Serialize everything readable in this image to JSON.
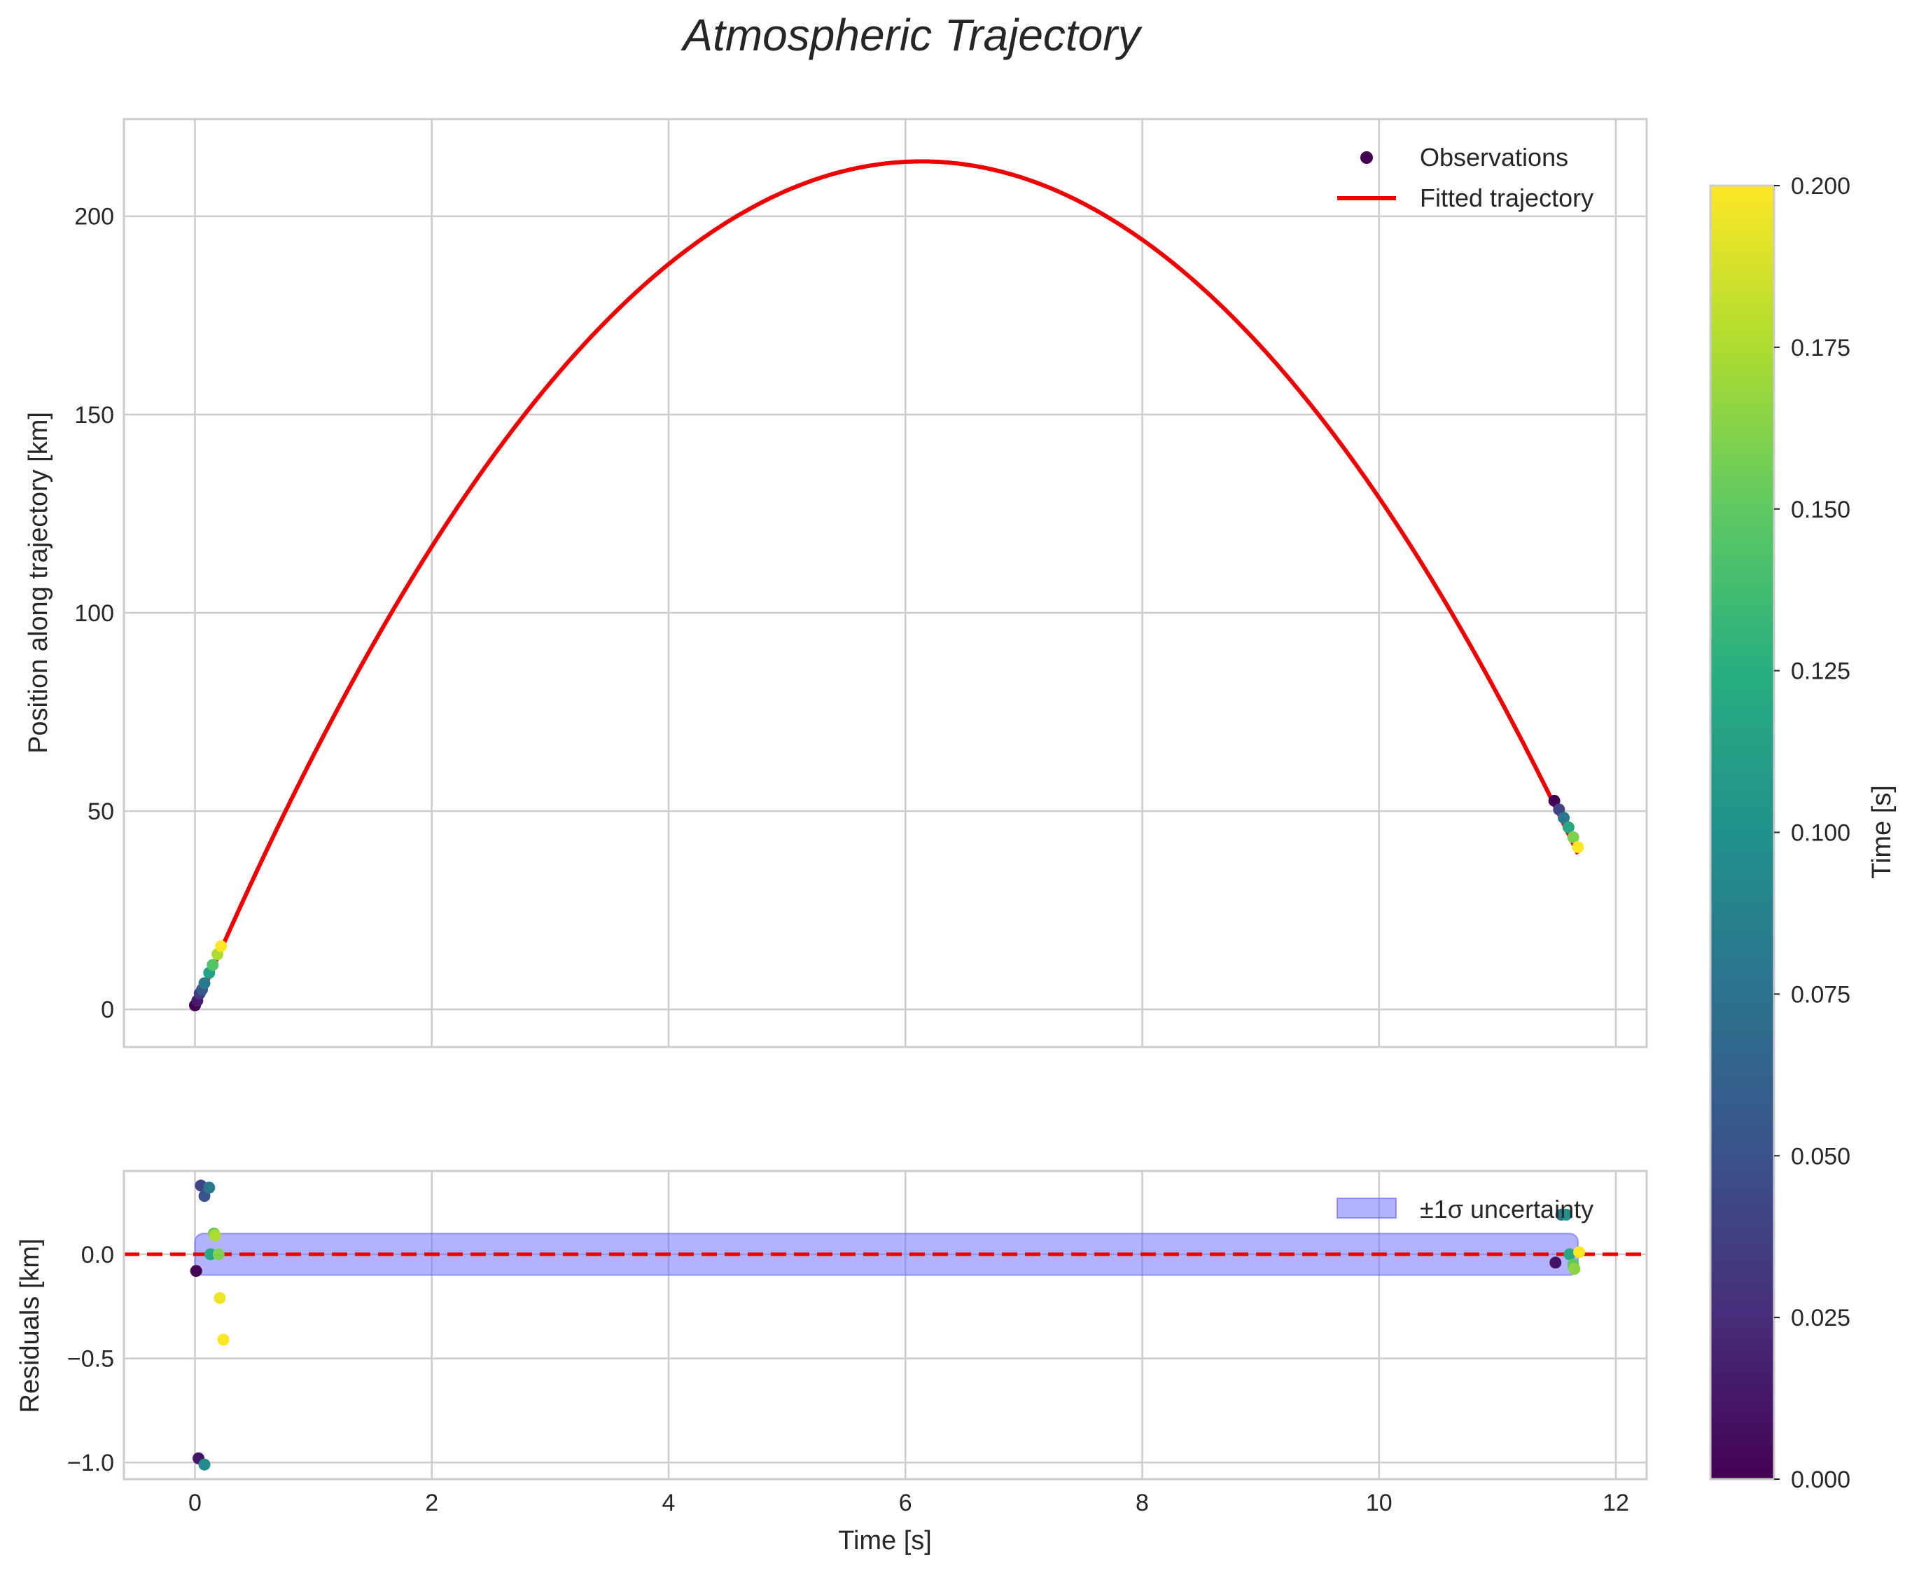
{
  "chart_data": [
    {
      "type": "scatter+line",
      "panel": "top",
      "title": "Atmospheric Trajectory",
      "xlabel": "",
      "ylabel": "Position along trajectory [km]",
      "xlim": [
        -0.6,
        12.26
      ],
      "ylim": [
        -9.5,
        224.5
      ],
      "xticks": [
        0,
        2,
        4,
        6,
        8,
        10,
        12
      ],
      "xtick_labels": [
        "0",
        "2",
        "4",
        "6",
        "8",
        "10",
        "12"
      ],
      "yticks": [
        0,
        50,
        100,
        150,
        200
      ],
      "ytick_labels": [
        "0",
        "50",
        "100",
        "150",
        "200"
      ],
      "grid": true,
      "legend": {
        "location": "top-right",
        "observations_label": "Observations",
        "fit_label": "Fitted trajectory"
      },
      "fit_color": "#ee0000",
      "fit_model": {
        "a": -5.68,
        "b": 69.7,
        "c": 0.0,
        "x_start": 0.0,
        "x_end": 11.68
      },
      "series": [
        {
          "name": "Observations",
          "points": [
            {
              "x": 0.0,
              "y": 1.0,
              "c": 0.0
            },
            {
              "x": 0.02,
              "y": 2.2,
              "c": 0.015
            },
            {
              "x": 0.04,
              "y": 4.0,
              "c": 0.035
            },
            {
              "x": 0.06,
              "y": 5.0,
              "c": 0.055
            },
            {
              "x": 0.08,
              "y": 6.6,
              "c": 0.08
            },
            {
              "x": 0.12,
              "y": 9.2,
              "c": 0.115
            },
            {
              "x": 0.15,
              "y": 11.2,
              "c": 0.145
            },
            {
              "x": 0.19,
              "y": 13.9,
              "c": 0.175
            },
            {
              "x": 0.22,
              "y": 15.9,
              "c": 0.2
            },
            {
              "x": 11.48,
              "y": 52.6,
              "c": 0.0
            },
            {
              "x": 11.52,
              "y": 50.4,
              "c": 0.04
            },
            {
              "x": 11.56,
              "y": 48.3,
              "c": 0.08
            },
            {
              "x": 11.6,
              "y": 45.9,
              "c": 0.12
            },
            {
              "x": 11.64,
              "y": 43.4,
              "c": 0.16
            },
            {
              "x": 11.68,
              "y": 40.9,
              "c": 0.2
            }
          ]
        }
      ]
    },
    {
      "type": "scatter",
      "panel": "bottom",
      "xlabel": "Time [s]",
      "ylabel": "Residuals [km]",
      "xlim": [
        -0.6,
        12.26
      ],
      "ylim": [
        -1.08,
        0.4
      ],
      "xticks": [
        0,
        2,
        4,
        6,
        8,
        10,
        12
      ],
      "xtick_labels": [
        "0",
        "2",
        "4",
        "6",
        "8",
        "10",
        "12"
      ],
      "yticks": [
        0.0,
        -0.5,
        -1.0
      ],
      "ytick_labels": [
        "0.0",
        "−0.5",
        "−1.0"
      ],
      "grid": true,
      "zero_line": 0.0,
      "band": {
        "x_start": 0.0,
        "x_end": 11.68,
        "sigma": 0.1,
        "color": "#6666ff"
      },
      "legend": {
        "location": "top-right",
        "band_label": "±1σ uncertainty"
      },
      "series": [
        {
          "name": "Residuals",
          "points": [
            {
              "x": 0.01,
              "y": -0.08,
              "c": 0.0
            },
            {
              "x": 0.03,
              "y": -0.98,
              "c": 0.012
            },
            {
              "x": 0.05,
              "y": 0.33,
              "c": 0.04
            },
            {
              "x": 0.08,
              "y": 0.28,
              "c": 0.05
            },
            {
              "x": 0.08,
              "y": -1.01,
              "c": 0.095
            },
            {
              "x": 0.12,
              "y": 0.32,
              "c": 0.08
            },
            {
              "x": 0.13,
              "y": 0.0,
              "c": 0.12
            },
            {
              "x": 0.16,
              "y": 0.1,
              "c": 0.155
            },
            {
              "x": 0.17,
              "y": 0.09,
              "c": 0.175
            },
            {
              "x": 0.2,
              "y": 0.0,
              "c": 0.16
            },
            {
              "x": 0.21,
              "y": -0.21,
              "c": 0.195
            },
            {
              "x": 0.24,
              "y": -0.41,
              "c": 0.2
            },
            {
              "x": 11.49,
              "y": -0.04,
              "c": 0.01
            },
            {
              "x": 11.54,
              "y": 0.19,
              "c": 0.07
            },
            {
              "x": 11.58,
              "y": 0.19,
              "c": 0.1
            },
            {
              "x": 11.61,
              "y": 0.0,
              "c": 0.12
            },
            {
              "x": 11.64,
              "y": -0.05,
              "c": 0.15
            },
            {
              "x": 11.65,
              "y": -0.07,
              "c": 0.165
            },
            {
              "x": 11.69,
              "y": 0.01,
              "c": 0.2
            }
          ]
        }
      ]
    },
    {
      "type": "colorbar",
      "label": "Time [s]",
      "colormap": "viridis",
      "range": [
        0.0,
        0.2
      ],
      "ticks": [
        0.0,
        0.025,
        0.05,
        0.075,
        0.1,
        0.125,
        0.15,
        0.175,
        0.2
      ],
      "tick_labels": [
        "0.000",
        "0.025",
        "0.050",
        "0.075",
        "0.100",
        "0.125",
        "0.150",
        "0.175",
        "0.200"
      ]
    }
  ]
}
